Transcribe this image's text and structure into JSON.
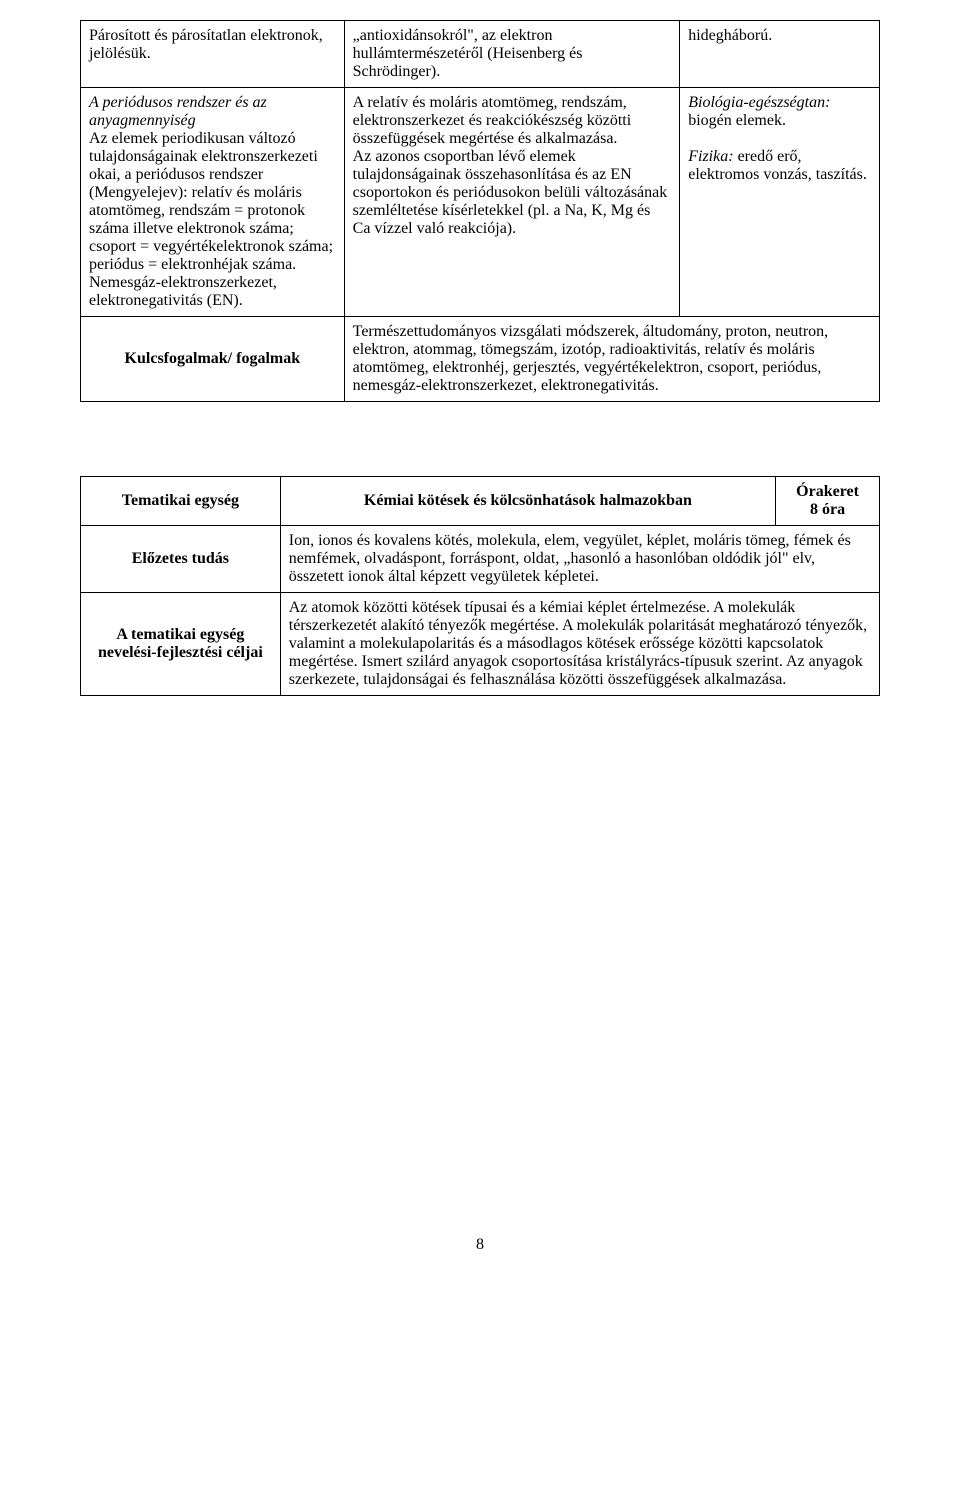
{
  "table1": {
    "r0c0": "Párosított és párosítatlan elektronok, jelölésük.",
    "r0c1": "„antioxidánsokról\", az elektron hullámtermészetéről (Heisenberg és Schrödinger).",
    "r0c2": "hidegháború.",
    "r1c0_p1_italic": "A periódusos rendszer és az anyagmennyiség",
    "r1c0_p2": "Az elemek periodikusan változó tulajdonságainak elektronszerkezeti okai, a periódusos rendszer (Mengyelejev): relatív és moláris atomtömeg, rendszám = protonok száma illetve elektronok száma; csoport = vegyértékelektronok száma; periódus = elektronhéjak száma. Nemesgáz-elektronszerkezet, elektronegativitás (EN).",
    "r1c1_p1": "A relatív és moláris atomtömeg, rendszám, elektronszerkezet és reakciókészség közötti összefüggések megértése és alkalmazása.",
    "r1c1_p2": "Az azonos csoportban lévő elemek tulajdonságainak összehasonlítása és az EN csoportokon és periódusokon belüli változásának szemléltetése kísérletekkel (pl. a Na, K, Mg és Ca vízzel való reakciója).",
    "r1c2_i1": "Biológia-egészségtan:",
    "r1c2_t1": " biogén elemek.",
    "r1c2_i2": "Fizika:",
    "r1c2_t2": " eredő erő, elektromos vonzás, taszítás.",
    "kulcs_label": "Kulcsfogalmak/ fogalmak",
    "kulcs_text": "Természettudományos vizsgálati módszerek, áltudomány, proton, neutron, elektron, atommag, tömegszám, izotóp, radioaktivitás, relatív és moláris atomtömeg, elektronhéj, gerjesztés, vegyértékelektron, csoport, periódus, nemesgáz-elektronszerkezet, elektronegativitás."
  },
  "table2": {
    "r0c0": "Tematikai egység",
    "r0c1": "Kémiai kötések és kölcsönhatások halmazokban",
    "r0c2_l1": "Órakeret",
    "r0c2_l2": "8 óra",
    "r1c0": "Előzetes tudás",
    "r1c1": "Ion, ionos és kovalens kötés, molekula, elem, vegyület, képlet, moláris tömeg, fémek és nemfémek, olvadáspont, forráspont, oldat, „hasonló a hasonlóban oldódik jól\" elv, összetett ionok által képzett vegyületek képletei.",
    "r2c0": "A tematikai egység nevelési-fejlesztési céljai",
    "r2c1": "Az atomok közötti kötések típusai és a kémiai képlet értelmezése. A molekulák térszerkezetét alakító tényezők megértése. A molekulák polaritását meghatározó tényezők, valamint a molekulapolaritás és a másodlagos kötések erőssége közötti kapcsolatok megértése. Ismert szilárd anyagok csoportosítása kristályrács-típusuk szerint. Az anyagok szerkezete, tulajdonságai és felhasználása közötti összefüggések alkalmazása."
  },
  "page": "8"
}
